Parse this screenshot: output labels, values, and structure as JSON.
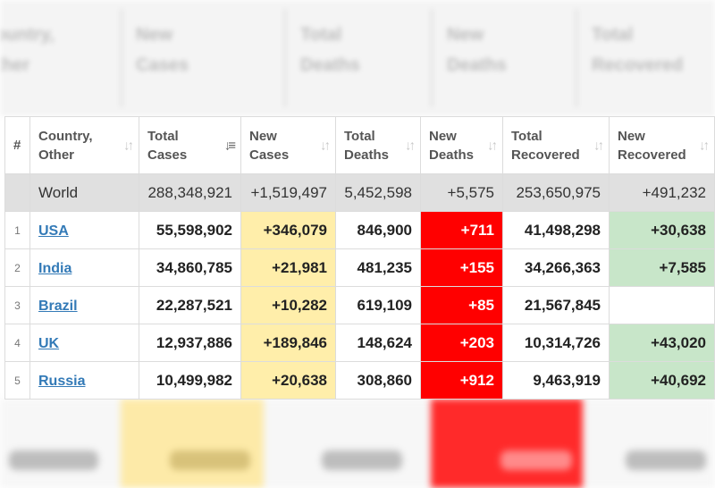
{
  "blurred_header": [
    "Country,",
    "Other",
    "New",
    "Cases",
    "Total",
    "Deaths",
    "New",
    "Deaths",
    "Total",
    "Recovered"
  ],
  "columns": [
    {
      "line1": "#",
      "line2": ""
    },
    {
      "line1": "Country,",
      "line2": "Other"
    },
    {
      "line1": "Total",
      "line2": "Cases"
    },
    {
      "line1": "New",
      "line2": "Cases"
    },
    {
      "line1": "Total",
      "line2": "Deaths"
    },
    {
      "line1": "New",
      "line2": "Deaths"
    },
    {
      "line1": "Total",
      "line2": "Recovered"
    },
    {
      "line1": "New",
      "line2": "Recovered"
    }
  ],
  "world": {
    "name": "World",
    "total_cases": "288,348,921",
    "new_cases": "+1,519,497",
    "total_deaths": "5,452,598",
    "new_deaths": "+5,575",
    "total_recovered": "253,650,975",
    "new_recovered": "+491,232"
  },
  "rows": [
    {
      "rank": "1",
      "country": "USA",
      "total_cases": "55,598,902",
      "new_cases": "+346,079",
      "total_deaths": "846,900",
      "new_deaths": "+711",
      "total_recovered": "41,498,298",
      "new_recovered": "+30,638"
    },
    {
      "rank": "2",
      "country": "India",
      "total_cases": "34,860,785",
      "new_cases": "+21,981",
      "total_deaths": "481,235",
      "new_deaths": "+155",
      "total_recovered": "34,266,363",
      "new_recovered": "+7,585"
    },
    {
      "rank": "3",
      "country": "Brazil",
      "total_cases": "22,287,521",
      "new_cases": "+10,282",
      "total_deaths": "619,109",
      "new_deaths": "+85",
      "total_recovered": "21,567,845",
      "new_recovered": ""
    },
    {
      "rank": "4",
      "country": "UK",
      "total_cases": "12,937,886",
      "new_cases": "+189,846",
      "total_deaths": "148,624",
      "new_deaths": "+203",
      "total_recovered": "10,314,726",
      "new_recovered": "+43,020"
    },
    {
      "rank": "5",
      "country": "Russia",
      "total_cases": "10,499,982",
      "new_cases": "+20,638",
      "total_deaths": "308,860",
      "new_deaths": "+912",
      "total_recovered": "9,463,919",
      "new_recovered": "+40,692"
    }
  ],
  "colors": {
    "new_cases_bg": "#ffeeaa",
    "new_deaths_bg": "#ff0000",
    "new_recovered_bg": "#c8e6c9",
    "world_row_bg": "#e0e0e0",
    "link": "#337ab7"
  },
  "icons": {
    "sort": "sort-arrows-icon",
    "sort_active": "sort-desc-icon"
  }
}
